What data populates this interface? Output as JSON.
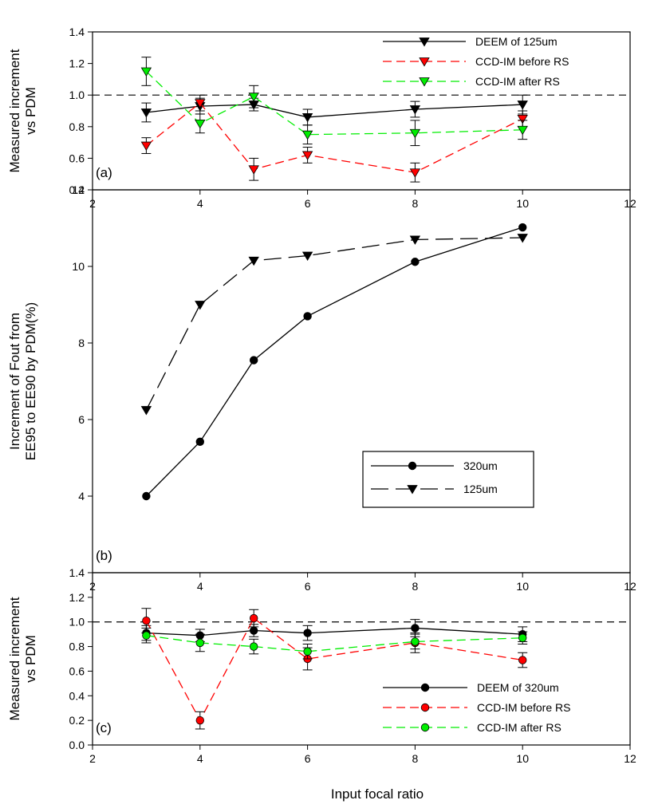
{
  "chart_data": [
    {
      "type": "line",
      "panel_label": "(a)",
      "ylabel_lines": [
        "Measured increment",
        "vs PDM"
      ],
      "xlim": [
        2,
        12
      ],
      "ylim": [
        0.4,
        1.4
      ],
      "xticks": [
        2,
        4,
        6,
        8,
        10,
        12
      ],
      "xtick_labels": [
        "2",
        "4",
        "6",
        "8",
        "10",
        "12"
      ],
      "yticks": [
        0.4,
        0.6,
        0.8,
        1.0,
        1.2,
        1.4
      ],
      "ytick_labels": [
        "0.4",
        "0.6",
        "0.8",
        "1.0",
        "1.2",
        "1.4"
      ],
      "reference_line": 1.0,
      "legend_position": "top-right",
      "series": [
        {
          "name": "DEEM of 125um",
          "color": "#000000",
          "dash": "solid",
          "marker": "triangle-down",
          "x": [
            3,
            4,
            5,
            6,
            8,
            10
          ],
          "y": [
            0.89,
            0.93,
            0.94,
            0.86,
            0.91,
            0.94
          ],
          "err": [
            0.06,
            0.05,
            0.04,
            0.05,
            0.05,
            0.06
          ]
        },
        {
          "name": "CCD-IM before RS",
          "color": "#ff0000",
          "dash": "dashed",
          "marker": "triangle-down",
          "x": [
            3,
            4,
            5,
            6,
            8,
            10
          ],
          "y": [
            0.68,
            0.95,
            0.53,
            0.62,
            0.51,
            0.85
          ],
          "err": [
            0.05,
            0.05,
            0.07,
            0.05,
            0.06,
            0.05
          ]
        },
        {
          "name": "CCD-IM after RS",
          "color": "#00ee00",
          "dash": "dashed",
          "marker": "triangle-down",
          "x": [
            3,
            4,
            5,
            6,
            8,
            10
          ],
          "y": [
            1.15,
            0.82,
            0.99,
            0.75,
            0.76,
            0.78
          ],
          "err": [
            0.09,
            0.06,
            0.07,
            0.06,
            0.08,
            0.06
          ]
        }
      ]
    },
    {
      "type": "line",
      "panel_label": "(b)",
      "ylabel_lines": [
        "Increment of Fout from",
        "EE95 to EE90 by PDM(%)"
      ],
      "xlim": [
        2,
        12
      ],
      "ylim": [
        2,
        12
      ],
      "xticks": [
        2,
        4,
        6,
        8,
        10,
        12
      ],
      "xtick_labels": [
        "2",
        "4",
        "6",
        "8",
        "10",
        "12"
      ],
      "yticks": [
        2,
        4,
        6,
        8,
        10,
        12
      ],
      "ytick_labels": [
        "",
        "4",
        "6",
        "8",
        "10",
        "12"
      ],
      "legend_position": "lower-right",
      "series": [
        {
          "name": "320um",
          "color": "#000000",
          "dash": "solid",
          "marker": "circle",
          "x": [
            3,
            4,
            5,
            6,
            8,
            10
          ],
          "y": [
            4.0,
            5.42,
            7.55,
            8.7,
            10.12,
            11.02
          ]
        },
        {
          "name": "125um",
          "color": "#000000",
          "dash": "longdash",
          "marker": "triangle-down",
          "x": [
            3,
            4,
            5,
            6,
            8,
            10
          ],
          "y": [
            6.25,
            9.0,
            10.15,
            10.28,
            10.7,
            10.75
          ]
        }
      ]
    },
    {
      "type": "line",
      "panel_label": "(c)",
      "xlabel": "Input focal ratio",
      "ylabel_lines": [
        "Measured increment",
        "vs PDM"
      ],
      "xlim": [
        2,
        12
      ],
      "ylim": [
        0.0,
        1.4
      ],
      "xticks": [
        2,
        4,
        6,
        8,
        10,
        12
      ],
      "xtick_labels": [
        "2",
        "4",
        "6",
        "8",
        "10",
        "12"
      ],
      "yticks": [
        0.0,
        0.2,
        0.4,
        0.6,
        0.8,
        1.0,
        1.2,
        1.4
      ],
      "ytick_labels": [
        "0.0",
        "0.2",
        "0.4",
        "0.6",
        "0.8",
        "1.0",
        "1.2",
        "1.4"
      ],
      "reference_line": 1.0,
      "legend_position": "bottom-right",
      "series": [
        {
          "name": "DEEM of 320um",
          "color": "#000000",
          "dash": "solid",
          "marker": "circle",
          "x": [
            3,
            4,
            5,
            6,
            8,
            10
          ],
          "y": [
            0.91,
            0.89,
            0.93,
            0.91,
            0.95,
            0.9
          ],
          "err": [
            0.06,
            0.05,
            0.05,
            0.06,
            0.07,
            0.06
          ]
        },
        {
          "name": "CCD-IM before RS",
          "color": "#ff0000",
          "dash": "dashed",
          "marker": "circle",
          "x": [
            3,
            4,
            5,
            6,
            8,
            10
          ],
          "y": [
            1.01,
            0.2,
            1.03,
            0.7,
            0.83,
            0.69
          ],
          "err": [
            0.1,
            0.07,
            0.07,
            0.09,
            0.08,
            0.06
          ]
        },
        {
          "name": "CCD-IM after RS",
          "color": "#00ee00",
          "dash": "dashed",
          "marker": "circle",
          "x": [
            3,
            4,
            5,
            6,
            8,
            10
          ],
          "y": [
            0.89,
            0.83,
            0.8,
            0.76,
            0.84,
            0.87
          ],
          "err": [
            0.06,
            0.07,
            0.06,
            0.06,
            0.06,
            0.05
          ]
        }
      ]
    }
  ]
}
